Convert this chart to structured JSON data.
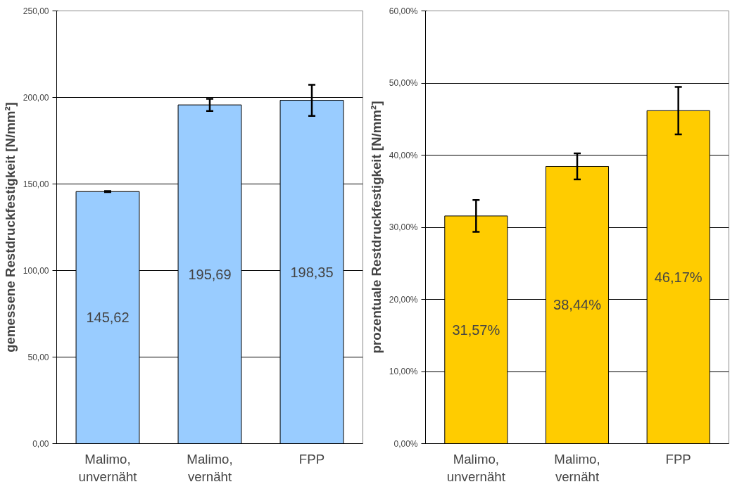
{
  "chart_data": [
    {
      "type": "bar",
      "ylabel": "gemessene Restdruckfestigkeit [N/mm²]",
      "categories": [
        "Malimo, unvernäht",
        "Malimo, vernäht",
        "FPP"
      ],
      "series": [
        {
          "color": "#99ccff",
          "values": [
            145.62,
            195.69,
            198.35
          ],
          "errors": [
            0.3,
            3.5,
            9
          ],
          "value_labels": [
            "145,62",
            "195,69",
            "198,35"
          ]
        }
      ],
      "ylim": [
        0,
        250
      ],
      "yticks": [
        {
          "value": 0,
          "label": "0,00"
        },
        {
          "value": 50,
          "label": "50,00"
        },
        {
          "value": 100,
          "label": "100,00"
        },
        {
          "value": 150,
          "label": "150,00"
        },
        {
          "value": 200,
          "label": "200,00"
        },
        {
          "value": 250,
          "label": "250,00"
        }
      ],
      "grid": "y"
    },
    {
      "type": "bar",
      "ylabel": "prozentuale Restdruckfestigkeit [N/mm²]",
      "categories": [
        "Malimo, unvernäht",
        "Malimo, vernäht",
        "FPP"
      ],
      "series": [
        {
          "color": "#ffcc00",
          "values": [
            31.57,
            38.44,
            46.17
          ],
          "errors": [
            2.2,
            1.8,
            3.3
          ],
          "value_labels": [
            "31,57%",
            "38,44%",
            "46,17%"
          ]
        }
      ],
      "ylim": [
        0,
        60
      ],
      "yticks": [
        {
          "value": 0,
          "label": "0,00%"
        },
        {
          "value": 10,
          "label": "10,00%"
        },
        {
          "value": 20,
          "label": "20,00%"
        },
        {
          "value": 30,
          "label": "30,00%"
        },
        {
          "value": 40,
          "label": "40,00%"
        },
        {
          "value": 50,
          "label": "50,00%"
        },
        {
          "value": 60,
          "label": "60,00%"
        }
      ],
      "grid": "y"
    }
  ]
}
